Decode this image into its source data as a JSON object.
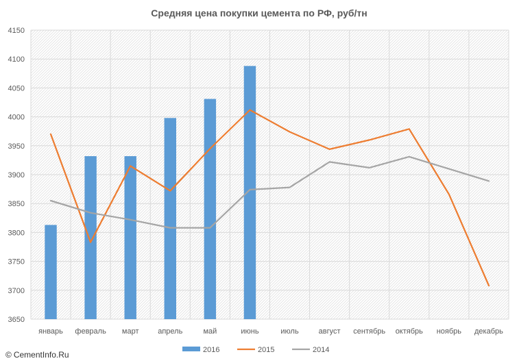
{
  "chart_data": {
    "type": "bar",
    "title": "Средняя цена покупки цемента по РФ, руб/тн",
    "categories": [
      "январь",
      "февраль",
      "март",
      "апрель",
      "май",
      "июнь",
      "июль",
      "август",
      "сентябрь",
      "октябрь",
      "ноябрь",
      "декабрь"
    ],
    "ylim": [
      3650,
      4150
    ],
    "yticks": [
      3650,
      3700,
      3750,
      3800,
      3850,
      3900,
      3950,
      4000,
      4050,
      4100,
      4150
    ],
    "series": [
      {
        "name": "2016",
        "type": "bar",
        "color": "#5b9bd5",
        "values": [
          3813,
          3932,
          3932,
          3998,
          4031,
          4088,
          null,
          null,
          null,
          null,
          null,
          null
        ]
      },
      {
        "name": "2015",
        "type": "line",
        "color": "#ed7d31",
        "values": [
          3970,
          3783,
          3915,
          3872,
          3945,
          4012,
          3974,
          3944,
          3960,
          3979,
          3866,
          3708
        ]
      },
      {
        "name": "2014",
        "type": "line",
        "color": "#a5a5a5",
        "values": [
          3855,
          3834,
          3822,
          3808,
          3808,
          3874,
          3878,
          3922,
          3912,
          3931,
          3910,
          3889
        ]
      }
    ],
    "legend_position": "bottom",
    "grid": true
  },
  "watermark": {
    "symbol": "©",
    "text": "CementInfo.Ru"
  }
}
